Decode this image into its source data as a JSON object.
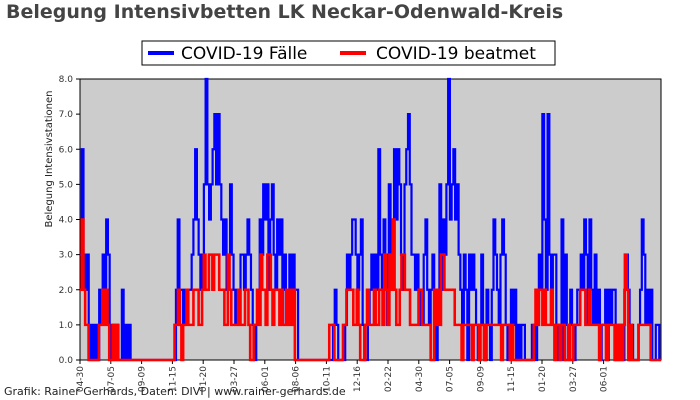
{
  "title": "Belegung Intensivbetten LK Neckar-Odenwald-Kreis",
  "footer": "Grafik: Rainer Gerhards, Daten: DIVI | www.rainer-gerhards.de",
  "chart_data": {
    "type": "line",
    "ylabel": "Belegung Intensivstationen",
    "ylim": [
      0,
      8
    ],
    "yticks": [
      "0.0",
      "1.0",
      "2.0",
      "3.0",
      "4.0",
      "5.0",
      "6.0",
      "7.0",
      "8.0"
    ],
    "xtick_labels": [
      "04-30",
      "07-05",
      "09-09",
      "11-15",
      "01-20",
      "03-27",
      "06-01",
      "08-06",
      "10-11",
      "12-16",
      "02-22",
      "04-30",
      "07-05",
      "09-09",
      "11-15",
      "01-20",
      "03-27",
      "06-01"
    ],
    "grid": false,
    "legend_position": "top",
    "background": "#cccccc",
    "series": [
      {
        "name": "COVID-19 Fälle",
        "color": "#0000ff",
        "values": [
          3,
          6,
          3,
          2,
          3,
          1,
          0,
          1,
          0,
          1,
          0,
          2,
          1,
          3,
          2,
          4,
          3,
          1,
          0,
          1,
          0,
          1,
          0,
          0,
          2,
          0,
          1,
          0,
          1,
          0,
          0,
          0,
          0,
          0,
          0,
          0,
          0,
          0,
          0,
          0,
          0,
          0,
          0,
          0,
          0,
          0,
          0,
          0,
          0,
          0,
          0,
          0,
          0,
          0,
          0,
          2,
          4,
          2,
          2,
          1,
          2,
          1,
          2,
          2,
          3,
          4,
          6,
          4,
          3,
          2,
          3,
          5,
          8,
          5,
          4,
          5,
          6,
          7,
          5,
          7,
          5,
          4,
          3,
          4,
          2,
          3,
          5,
          3,
          2,
          1,
          2,
          1,
          3,
          3,
          2,
          3,
          4,
          3,
          2,
          1,
          0,
          1,
          2,
          4,
          3,
          5,
          4,
          5,
          2,
          4,
          5,
          3,
          2,
          4,
          3,
          4,
          2,
          3,
          1,
          2,
          3,
          2,
          3,
          2,
          2,
          0,
          0,
          0,
          0,
          0,
          0,
          0,
          0,
          0,
          0,
          0,
          0,
          0,
          0,
          0,
          0,
          0,
          0,
          0,
          0,
          1,
          2,
          1,
          0,
          0,
          0,
          0,
          1,
          3,
          2,
          3,
          4,
          4,
          3,
          2,
          3,
          4,
          1,
          0,
          0,
          1,
          2,
          3,
          2,
          3,
          2,
          6,
          3,
          2,
          4,
          3,
          1,
          5,
          3,
          2,
          6,
          4,
          6,
          5,
          3,
          2,
          5,
          6,
          7,
          5,
          3,
          3,
          2,
          3,
          1,
          2,
          1,
          3,
          4,
          2,
          1,
          2,
          3,
          1,
          0,
          2,
          5,
          2,
          4,
          3,
          5,
          8,
          4,
          5,
          6,
          4,
          5,
          3,
          2,
          1,
          3,
          2,
          0,
          3,
          2,
          3,
          2,
          1,
          0,
          1,
          3,
          1,
          0,
          2,
          1,
          0,
          2,
          4,
          3,
          2,
          1,
          3,
          4,
          3,
          1,
          0,
          1,
          2,
          1,
          2,
          0,
          1,
          0,
          1,
          1,
          0,
          0,
          0,
          0,
          1,
          1,
          0,
          2,
          3,
          2,
          7,
          4,
          2,
          7,
          3,
          2,
          3,
          3,
          1,
          0,
          1,
          4,
          0,
          3,
          1,
          0,
          2,
          1,
          0,
          1,
          2,
          2,
          3,
          2,
          4,
          3,
          1,
          4,
          2,
          1,
          3,
          1,
          2,
          0,
          1,
          1,
          2,
          0,
          2,
          1,
          2,
          2,
          0,
          1,
          0,
          1,
          0,
          2,
          3,
          2,
          0,
          1,
          0,
          0,
          0,
          1,
          2,
          4,
          3,
          1,
          2,
          1,
          2,
          0,
          0,
          1,
          1,
          0
        ]
      },
      {
        "name": "COVID-19 beatmet",
        "color": "#ff0000",
        "values": [
          2,
          4,
          2,
          1,
          1,
          0,
          0,
          0,
          0,
          0,
          0,
          1,
          1,
          2,
          1,
          2,
          1,
          0,
          0,
          1,
          0,
          1,
          0,
          0,
          0,
          0,
          0,
          0,
          0,
          0,
          0,
          0,
          0,
          0,
          0,
          0,
          0,
          0,
          0,
          0,
          0,
          0,
          0,
          0,
          0,
          0,
          0,
          0,
          0,
          0,
          0,
          0,
          0,
          0,
          0,
          1,
          1,
          2,
          1,
          0,
          1,
          1,
          2,
          1,
          1,
          1,
          2,
          2,
          2,
          1,
          1,
          2,
          3,
          2,
          2,
          3,
          3,
          2,
          3,
          3,
          3,
          2,
          2,
          2,
          1,
          1,
          3,
          2,
          1,
          1,
          1,
          1,
          2,
          1,
          1,
          1,
          2,
          2,
          1,
          0,
          0,
          1,
          1,
          2,
          1,
          3,
          2,
          2,
          1,
          3,
          3,
          2,
          1,
          2,
          2,
          2,
          1,
          2,
          1,
          1,
          2,
          1,
          2,
          1,
          2,
          0,
          0,
          0,
          0,
          0,
          0,
          0,
          0,
          0,
          0,
          0,
          0,
          0,
          0,
          0,
          0,
          0,
          0,
          0,
          0,
          1,
          1,
          1,
          0,
          0,
          0,
          0,
          0,
          1,
          1,
          2,
          2,
          2,
          2,
          1,
          1,
          2,
          1,
          0,
          0,
          0,
          1,
          2,
          1,
          1,
          1,
          2,
          1,
          1,
          2,
          2,
          1,
          3,
          2,
          1,
          3,
          2,
          4,
          2,
          1,
          1,
          2,
          3,
          3,
          2,
          2,
          2,
          1,
          1,
          1,
          1,
          1,
          2,
          2,
          1,
          1,
          1,
          1,
          1,
          0,
          0,
          2,
          1,
          2,
          1,
          3,
          3,
          2,
          2,
          2,
          2,
          2,
          2,
          1,
          1,
          1,
          1,
          0,
          1,
          1,
          1,
          1,
          1,
          0,
          1,
          1,
          1,
          0,
          1,
          1,
          0,
          1,
          1,
          1,
          1,
          1,
          1,
          1,
          1,
          1,
          0,
          1,
          1,
          1,
          1,
          0,
          1,
          0,
          0,
          0,
          0,
          0,
          0,
          0,
          0,
          0,
          0,
          0,
          0,
          1,
          2,
          1,
          2,
          2,
          1,
          2,
          1,
          1,
          1,
          2,
          1,
          0,
          1,
          1,
          0,
          1,
          1,
          0,
          0,
          1,
          0,
          0,
          1,
          1,
          1,
          1,
          2,
          2,
          2,
          1,
          1,
          2,
          1,
          1,
          1,
          1,
          1,
          0,
          1,
          1,
          1,
          0,
          1,
          1,
          1,
          1,
          0,
          1,
          0,
          1,
          0,
          1,
          3,
          2,
          0,
          1,
          0,
          0,
          0,
          0,
          1,
          1,
          1,
          1,
          1,
          1,
          1,
          0,
          0,
          0,
          0,
          0,
          0
        ]
      }
    ]
  }
}
